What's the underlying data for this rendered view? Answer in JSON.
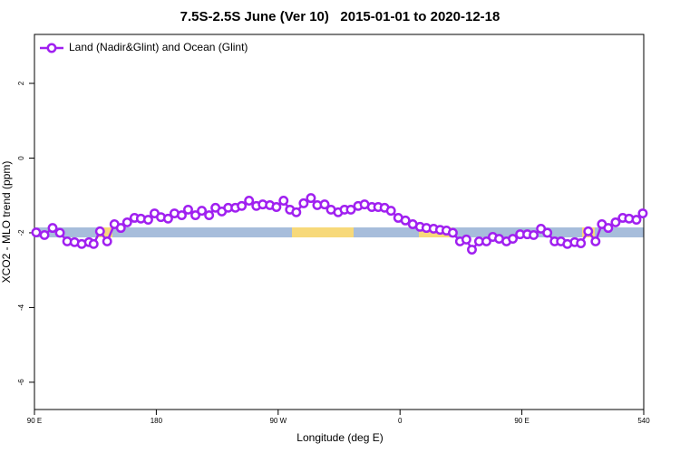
{
  "chart_data": {
    "type": "line",
    "title": "7.5S-2.5S June (Ver 10)   2015-01-01 to 2020-12-18",
    "xlabel": "Longitude (deg E)",
    "ylabel": "XCO2 - MLO trend (ppm)",
    "x": [
      91.3,
      97.4,
      103.4,
      108.8,
      114.2,
      119.6,
      124.9,
      130.3,
      133.7,
      138.4,
      143.7,
      149.1,
      153.8,
      158.5,
      163.9,
      168.6,
      174.0,
      178.7,
      183.4,
      188.7,
      193.4,
      198.8,
      203.5,
      208.9,
      213.6,
      219.0,
      223.7,
      228.4,
      233.1,
      238.4,
      243.1,
      248.5,
      253.9,
      258.6,
      263.9,
      268.7,
      274.0,
      278.7,
      283.4,
      288.8,
      294.2,
      298.9,
      304.3,
      309.0,
      314.3,
      319.0,
      323.7,
      329.1,
      333.8,
      339.2,
      343.9,
      348.6,
      353.3,
      358.7,
      364.0,
      369.4,
      374.8,
      379.5,
      384.8,
      389.6,
      394.3,
      399.0,
      404.3,
      409.0,
      413.1,
      418.4,
      423.8,
      428.5,
      433.2,
      438.6,
      443.3,
      448.7,
      454.0,
      458.7,
      464.1,
      468.8,
      474.2,
      478.9,
      483.6,
      489.0,
      493.6,
      499.0,
      504.4,
      509.1,
      513.8,
      519.2,
      524.5,
      529.2,
      534.6,
      539.3
    ],
    "series": [
      {
        "name": "Land (Nadir&Glint) and Ocean (Glint)",
        "color": "#a020f0",
        "values": [
          -1.99,
          -2.06,
          -1.87,
          -2.0,
          -2.23,
          -2.25,
          -2.3,
          -2.25,
          -2.3,
          -1.96,
          -2.23,
          -1.77,
          -1.87,
          -1.72,
          -1.6,
          -1.62,
          -1.65,
          -1.48,
          -1.58,
          -1.62,
          -1.48,
          -1.53,
          -1.38,
          -1.53,
          -1.41,
          -1.53,
          -1.33,
          -1.43,
          -1.33,
          -1.33,
          -1.28,
          -1.14,
          -1.28,
          -1.24,
          -1.26,
          -1.31,
          -1.14,
          -1.38,
          -1.45,
          -1.21,
          -1.07,
          -1.26,
          -1.24,
          -1.38,
          -1.45,
          -1.38,
          -1.38,
          -1.28,
          -1.24,
          -1.31,
          -1.31,
          -1.33,
          -1.41,
          -1.6,
          -1.67,
          -1.77,
          -1.84,
          -1.87,
          -1.89,
          -1.92,
          -1.94,
          -2.0,
          -2.23,
          -2.18,
          -2.45,
          -2.23,
          -2.23,
          -2.11,
          -2.16,
          -2.23,
          -2.16,
          -2.04,
          -2.04,
          -2.06,
          -1.89,
          -2.0,
          -2.23,
          -2.23,
          -2.3,
          -2.25,
          -2.28,
          -1.96,
          -2.23,
          -1.77,
          -1.87,
          -1.72,
          -1.6,
          -1.62,
          -1.65,
          -1.48
        ]
      }
    ],
    "xlim": [
      90,
      540
    ],
    "xticks": [
      {
        "value": 90,
        "label": "90 E"
      },
      180,
      {
        "value": 270,
        "label": "90 W"
      },
      {
        "value": 360,
        "label": "0"
      },
      {
        "value": 450,
        "label": "90 E"
      },
      540
    ],
    "ylim": [
      -6.73,
      3.31
    ],
    "yticks": [
      2,
      0,
      -2,
      -4,
      -6
    ],
    "legend": "top-left"
  }
}
